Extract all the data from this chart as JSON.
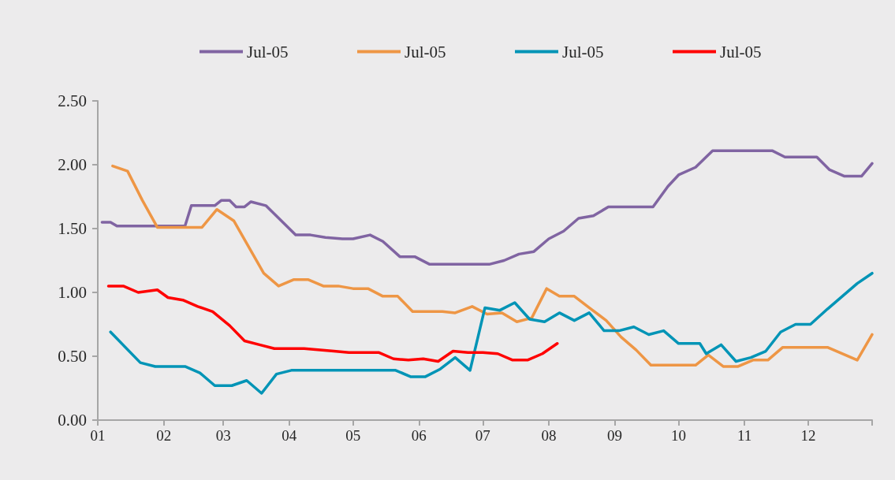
{
  "chart_data": {
    "type": "line",
    "legend": "top",
    "grid": false,
    "marker": "none",
    "line_style": "solid",
    "xlim": [
      "--01-01",
      "--12-31"
    ],
    "xticks": [
      {
        "value": "--01-01",
        "label": "01"
      },
      {
        "value": "--02-01",
        "label": "02"
      },
      {
        "value": "--03-01",
        "label": "03"
      },
      {
        "value": "--04-01",
        "label": "04"
      },
      {
        "value": "--05-01",
        "label": "05"
      },
      {
        "value": "--06-01",
        "label": "06"
      },
      {
        "value": "--07-01",
        "label": "07"
      },
      {
        "value": "--08-01",
        "label": "08"
      },
      {
        "value": "--09-01",
        "label": "09"
      },
      {
        "value": "--10-01",
        "label": "10"
      },
      {
        "value": "--11-01",
        "label": "11"
      },
      {
        "value": "--12-01",
        "label": "12"
      },
      {
        "value": "--12-31",
        "label": null
      }
    ],
    "ylim": [
      0,
      2.5
    ],
    "yticks": [
      {
        "value": 0,
        "label": "0.00"
      },
      {
        "value": 0.5,
        "label": "0.50"
      },
      {
        "value": 1,
        "label": "1.00"
      },
      {
        "value": 1.5,
        "label": "1.50"
      },
      {
        "value": 2,
        "label": "2.00"
      },
      {
        "value": 2.5,
        "label": "2.50"
      }
    ],
    "series": [
      {
        "name": "Jul-05",
        "color": "#8064a2",
        "x": [
          "--01-03",
          "--01-07",
          "--01-10",
          "--02-11",
          "--02-14",
          "--02-25",
          "--02-28",
          "--03-04",
          "--03-07",
          "--03-11",
          "--03-14",
          "--03-21",
          "--04-04",
          "--04-11",
          "--04-18",
          "--04-26",
          "--05-01",
          "--05-09",
          "--05-15",
          "--05-23",
          "--05-30",
          "--06-06",
          "--07-04",
          "--07-11",
          "--07-18",
          "--07-25",
          "--08-01",
          "--08-08",
          "--08-15",
          "--08-22",
          "--08-29",
          "--09-19",
          "--09-26",
          "--10-01",
          "--10-09",
          "--10-17",
          "--11-14",
          "--11-20",
          "--12-05",
          "--12-11",
          "--12-18",
          "--12-26",
          "--12-31"
        ],
        "values": [
          1.55,
          1.55,
          1.52,
          1.52,
          1.68,
          1.68,
          1.72,
          1.72,
          1.67,
          1.67,
          1.71,
          1.68,
          1.45,
          1.45,
          1.43,
          1.42,
          1.42,
          1.45,
          1.4,
          1.28,
          1.28,
          1.22,
          1.22,
          1.25,
          1.3,
          1.32,
          1.42,
          1.48,
          1.58,
          1.6,
          1.67,
          1.67,
          1.83,
          1.92,
          1.98,
          2.11,
          2.11,
          2.06,
          2.06,
          1.96,
          1.91,
          1.91,
          2.01
        ]
      },
      {
        "name": "Jul-05",
        "color": "#ee9645",
        "x": [
          "--01-08",
          "--01-15",
          "--01-22",
          "--01-29",
          "--02-19",
          "--02-26",
          "--03-06",
          "--03-20",
          "--03-27",
          "--04-03",
          "--04-10",
          "--04-17",
          "--04-24",
          "--05-01",
          "--05-08",
          "--05-15",
          "--05-22",
          "--05-29",
          "--06-12",
          "--06-18",
          "--06-26",
          "--07-03",
          "--07-10",
          "--07-17",
          "--07-24",
          "--07-31",
          "--08-06",
          "--08-13",
          "--08-20",
          "--08-28",
          "--09-04",
          "--09-11",
          "--09-18",
          "--10-09",
          "--10-15",
          "--10-22",
          "--10-29",
          "--11-05",
          "--11-12",
          "--11-19",
          "--12-10",
          "--12-24",
          "--12-31"
        ],
        "values": [
          1.99,
          1.95,
          1.72,
          1.51,
          1.51,
          1.65,
          1.56,
          1.15,
          1.05,
          1.1,
          1.1,
          1.05,
          1.05,
          1.03,
          1.03,
          0.97,
          0.97,
          0.85,
          0.85,
          0.84,
          0.89,
          0.83,
          0.84,
          0.77,
          0.8,
          1.03,
          0.97,
          0.97,
          0.88,
          0.78,
          0.65,
          0.55,
          0.43,
          0.43,
          0.51,
          0.42,
          0.42,
          0.47,
          0.47,
          0.57,
          0.57,
          0.47,
          0.67
        ]
      },
      {
        "name": "Jul-05",
        "color": "#0094b6",
        "x": [
          "--01-07",
          "--01-21",
          "--01-28",
          "--02-11",
          "--02-18",
          "--02-25",
          "--03-05",
          "--03-12",
          "--03-19",
          "--03-26",
          "--04-02",
          "--05-21",
          "--05-28",
          "--06-04",
          "--06-11",
          "--06-18",
          "--06-25",
          "--07-02",
          "--07-09",
          "--07-16",
          "--07-23",
          "--07-30",
          "--08-06",
          "--08-13",
          "--08-20",
          "--08-27",
          "--09-03",
          "--09-10",
          "--09-17",
          "--09-24",
          "--10-01",
          "--10-11",
          "--10-14",
          "--10-21",
          "--10-28",
          "--11-04",
          "--11-11",
          "--11-18",
          "--11-25",
          "--12-02",
          "--12-10",
          "--12-17",
          "--12-24",
          "--12-31"
        ],
        "values": [
          0.69,
          0.45,
          0.42,
          0.42,
          0.37,
          0.27,
          0.27,
          0.31,
          0.21,
          0.36,
          0.39,
          0.39,
          0.34,
          0.34,
          0.4,
          0.49,
          0.39,
          0.88,
          0.86,
          0.92,
          0.79,
          0.77,
          0.84,
          0.78,
          0.84,
          0.7,
          0.7,
          0.73,
          0.67,
          0.7,
          0.6,
          0.6,
          0.52,
          0.59,
          0.46,
          0.49,
          0.54,
          0.69,
          0.75,
          0.75,
          0.87,
          0.97,
          1.07,
          1.15
        ]
      },
      {
        "name": "Jul-05",
        "color": "#ff0000",
        "x": [
          "--01-06",
          "--01-13",
          "--01-20",
          "--01-29",
          "--02-03",
          "--02-10",
          "--02-17",
          "--02-24",
          "--03-04",
          "--03-11",
          "--03-18",
          "--03-25",
          "--04-08",
          "--04-22",
          "--04-29",
          "--05-13",
          "--05-20",
          "--05-27",
          "--06-03",
          "--06-10",
          "--06-17",
          "--06-24",
          "--07-01",
          "--07-08",
          "--07-15",
          "--07-22",
          "--07-29",
          "--08-05"
        ],
        "values": [
          1.05,
          1.05,
          1.0,
          1.02,
          0.96,
          0.94,
          0.89,
          0.85,
          0.74,
          0.62,
          0.59,
          0.56,
          0.56,
          0.54,
          0.53,
          0.53,
          0.48,
          0.47,
          0.48,
          0.46,
          0.54,
          0.53,
          0.53,
          0.52,
          0.47,
          0.47,
          0.52,
          0.6
        ]
      }
    ]
  }
}
